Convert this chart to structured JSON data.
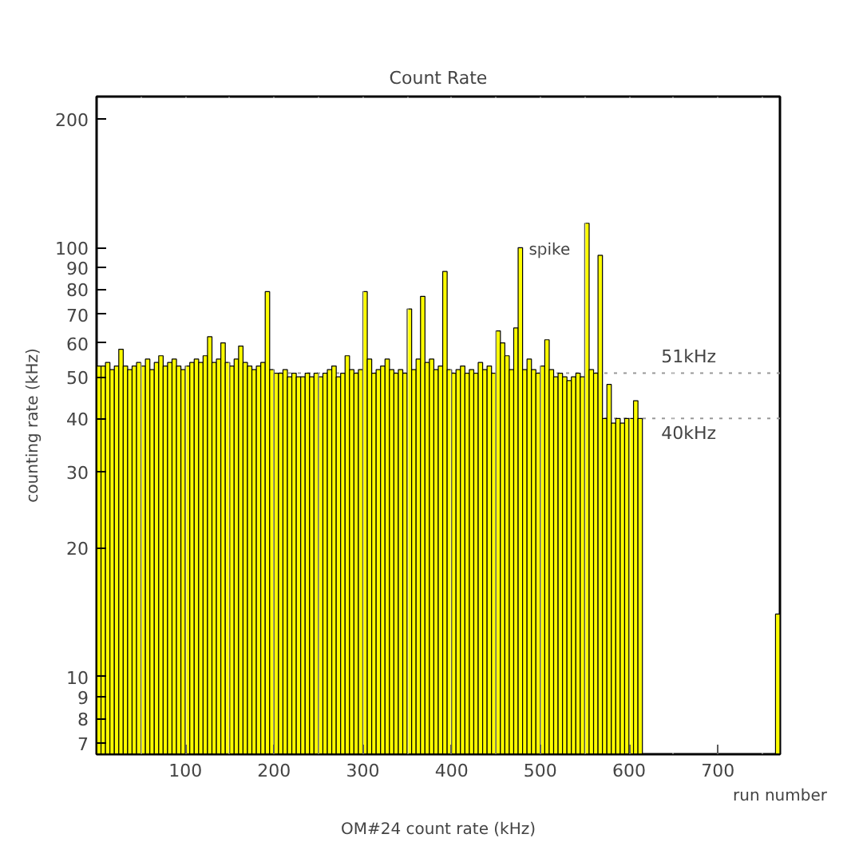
{
  "chart_data": {
    "type": "histogram",
    "title": "Count Rate",
    "xlabel": "run number",
    "ylabel": "counting rate (kHz)",
    "annotations": [
      {
        "text": "spike",
        "x": 478,
        "y": 100
      },
      "OM#24 count rate (kHz)"
    ],
    "bins": [
      0,
      5,
      10,
      15,
      20,
      25,
      30,
      35,
      40,
      45,
      50,
      55,
      60,
      65,
      70,
      75,
      80,
      85,
      90,
      95,
      100,
      105,
      110,
      115,
      120,
      125,
      130,
      135,
      140,
      145,
      150,
      155,
      160,
      165,
      170,
      175,
      180,
      185,
      190,
      195,
      200,
      205,
      210,
      215,
      220,
      225,
      230,
      235,
      240,
      245,
      250,
      255,
      260,
      265,
      270,
      275,
      280,
      285,
      290,
      295,
      300,
      305,
      310,
      315,
      320,
      325,
      330,
      335,
      340,
      345,
      350,
      355,
      360,
      365,
      370,
      375,
      380,
      385,
      390,
      395,
      400,
      405,
      410,
      415,
      420,
      425,
      430,
      435,
      440,
      445,
      450,
      455,
      460,
      465,
      470,
      475,
      480,
      485,
      490,
      495,
      500,
      505,
      510,
      515,
      520,
      525,
      530,
      535,
      540,
      545,
      550,
      555,
      560,
      565,
      570,
      575,
      580,
      585,
      590,
      595,
      600,
      605,
      610,
      615,
      620,
      625,
      630,
      635,
      640,
      645,
      650,
      655,
      660,
      665,
      670,
      675,
      680,
      685,
      690,
      695,
      700,
      705,
      710,
      715,
      720,
      725,
      730,
      735,
      740,
      745,
      750,
      755,
      760,
      765,
      770
    ],
    "values": [
      53,
      53,
      54,
      52,
      53,
      58,
      53,
      52,
      53,
      54,
      53,
      55,
      52,
      54,
      56,
      53,
      54,
      55,
      53,
      52,
      53,
      54,
      55,
      54,
      56,
      62,
      54,
      55,
      60,
      54,
      53,
      55,
      59,
      54,
      53,
      52,
      53,
      54,
      79,
      52,
      51,
      51,
      52,
      50,
      51,
      50,
      50,
      51,
      50,
      51,
      50,
      51,
      52,
      53,
      50,
      51,
      56,
      52,
      51,
      52,
      79,
      55,
      51,
      52,
      53,
      55,
      52,
      51,
      52,
      51,
      72,
      52,
      55,
      77,
      54,
      55,
      52,
      53,
      88,
      52,
      51,
      52,
      53,
      51,
      52,
      51,
      54,
      52,
      53,
      51,
      64,
      60,
      56,
      52,
      65,
      100,
      52,
      55,
      52,
      51,
      53,
      61,
      52,
      50,
      51,
      50,
      49,
      50,
      51,
      50,
      114,
      52,
      51,
      96,
      40,
      48,
      39,
      40,
      39,
      40,
      40,
      44,
      40,
      null,
      null,
      null,
      null,
      null,
      null,
      null,
      null,
      null,
      null,
      null,
      null,
      null,
      null,
      null,
      null,
      null,
      null,
      null,
      null,
      null,
      null,
      null,
      null,
      null,
      null,
      null,
      null,
      null,
      null,
      14
    ],
    "color": "#ffff00",
    "xlim": [
      0,
      770
    ],
    "xticks": [
      100,
      200,
      300,
      400,
      500,
      600,
      700
    ],
    "ylim": [
      6.6,
      225
    ],
    "yticks": [
      7,
      8,
      9,
      10,
      20,
      30,
      40,
      50,
      60,
      70,
      80,
      90,
      100,
      200
    ],
    "log": true,
    "grid": "x",
    "ref_lines": [
      {
        "axis": "y",
        "value": 51,
        "label": "51kHz",
        "line_style": "dotted"
      },
      {
        "axis": "y",
        "value": 40,
        "label": "40kHz",
        "line_style": "dotted"
      }
    ],
    "legend": false
  }
}
